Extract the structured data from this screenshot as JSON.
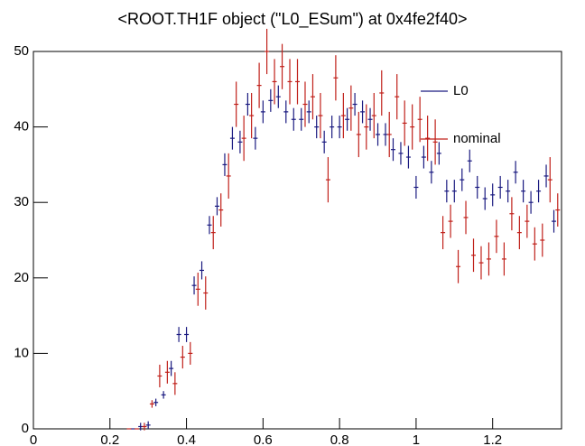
{
  "chart_data": {
    "type": "errorbar",
    "title": "<ROOT.TH1F object (\"L0_ESum\") at 0x4fe2f40>",
    "xlim": [
      0,
      1.38
    ],
    "ylim": [
      0,
      50
    ],
    "xticks": [
      0,
      0.2,
      0.4,
      0.6,
      0.8,
      1,
      1.2
    ],
    "yticks": [
      0,
      10,
      20,
      30,
      40,
      50
    ],
    "series": [
      {
        "name": "L0",
        "color": "#1a1a80",
        "x": [
          0.26,
          0.28,
          0.3,
          0.32,
          0.34,
          0.36,
          0.38,
          0.4,
          0.42,
          0.44,
          0.46,
          0.48,
          0.5,
          0.52,
          0.54,
          0.56,
          0.58,
          0.6,
          0.62,
          0.64,
          0.66,
          0.68,
          0.7,
          0.72,
          0.74,
          0.76,
          0.78,
          0.8,
          0.82,
          0.84,
          0.86,
          0.88,
          0.9,
          0.92,
          0.94,
          0.96,
          0.98,
          1,
          1.02,
          1.04,
          1.06,
          1.08,
          1.1,
          1.12,
          1.14,
          1.16,
          1.18,
          1.2,
          1.22,
          1.24,
          1.26,
          1.28,
          1.3,
          1.32,
          1.34,
          1.36
        ],
        "values": [
          0,
          0.3,
          0.5,
          3.5,
          4.5,
          8,
          12.5,
          12.5,
          19,
          21,
          27,
          29.5,
          35,
          38.5,
          38,
          43,
          38.5,
          42,
          43.5,
          44,
          42,
          41,
          41,
          42,
          40,
          38,
          40,
          40,
          41,
          43,
          42,
          41,
          39,
          39,
          37,
          36.5,
          36,
          32,
          36,
          34,
          36.5,
          31.5,
          31.5,
          33,
          35.5,
          32,
          30.5,
          31,
          32,
          31.5,
          34,
          31.5,
          30,
          31.5,
          33.5,
          27.5
        ],
        "errors": [
          0,
          0.5,
          0.5,
          0.5,
          0.5,
          1,
          1,
          1,
          1.2,
          1.2,
          1.2,
          1.2,
          1.5,
          1.5,
          1.5,
          1.5,
          1.5,
          1.5,
          1.5,
          1.5,
          1.5,
          1.5,
          1.5,
          1.5,
          1.5,
          1.5,
          1.5,
          1.5,
          1.5,
          1.5,
          1.5,
          1.5,
          1.5,
          1.5,
          1.5,
          1.5,
          1.5,
          1.5,
          1.5,
          1.5,
          1.5,
          1.5,
          1.5,
          1.5,
          1.5,
          1.5,
          1.5,
          1.5,
          1.5,
          1.5,
          1.5,
          1.5,
          1.5,
          1.5,
          1.5,
          1.5
        ]
      },
      {
        "name": "nominal",
        "color": "#c0201a",
        "x": [
          0.25,
          0.27,
          0.29,
          0.31,
          0.33,
          0.35,
          0.37,
          0.39,
          0.41,
          0.43,
          0.45,
          0.47,
          0.49,
          0.51,
          0.53,
          0.55,
          0.57,
          0.59,
          0.61,
          0.63,
          0.65,
          0.67,
          0.69,
          0.71,
          0.73,
          0.75,
          0.77,
          0.79,
          0.81,
          0.83,
          0.85,
          0.87,
          0.89,
          0.91,
          0.93,
          0.95,
          0.97,
          0.99,
          1.01,
          1.03,
          1.05,
          1.07,
          1.09,
          1.11,
          1.13,
          1.15,
          1.17,
          1.19,
          1.21,
          1.23,
          1.25,
          1.27,
          1.29,
          1.31,
          1.33,
          1.35,
          1.37
        ],
        "values": [
          0,
          0,
          0.3,
          3.3,
          7,
          7.5,
          6,
          9.5,
          10,
          18.5,
          18,
          26,
          29,
          33.5,
          43,
          38.5,
          41.5,
          45.5,
          50,
          46,
          48,
          46,
          46,
          43,
          44,
          41.5,
          33,
          46.5,
          41.5,
          42.5,
          39,
          40,
          41.5,
          44.5,
          39,
          44,
          40.5,
          40,
          41,
          38.5,
          38,
          26,
          27.5,
          21.5,
          28,
          23,
          22,
          22.5,
          25.5,
          22.5,
          28.5,
          26,
          27.5,
          24.5,
          25,
          33,
          29
        ],
        "errors": [
          0,
          0,
          0.5,
          0.5,
          1.5,
          1.5,
          1.5,
          1.5,
          1.5,
          2.2,
          2.2,
          2.2,
          2.2,
          3,
          3,
          3,
          3,
          3,
          3,
          3,
          3,
          3,
          3,
          3,
          3,
          3,
          3,
          3,
          3,
          3,
          3,
          3,
          3,
          3,
          3,
          3,
          3,
          3,
          3,
          3,
          3,
          2.2,
          2.2,
          2.2,
          2.2,
          2.2,
          2.2,
          2.2,
          2.2,
          2.2,
          2.2,
          2.2,
          2.2,
          2.2,
          2.2,
          3,
          2.2
        ]
      }
    ]
  }
}
